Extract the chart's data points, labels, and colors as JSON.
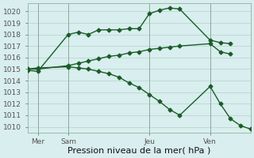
{
  "background_color": "#d9eeee",
  "grid_color": "#b8d8d0",
  "line_color": "#1a5c28",
  "marker_color": "#1a5c28",
  "xlabel": "Pression niveau de la mer( hPa )",
  "ylim": [
    1009.5,
    1020.7
  ],
  "yticks": [
    1010,
    1011,
    1012,
    1013,
    1014,
    1015,
    1016,
    1017,
    1018,
    1019,
    1020
  ],
  "xtick_labels": [
    "Mer",
    "Sam",
    "Jeu",
    "Ven"
  ],
  "num_points": 23,
  "line1_x": [
    0,
    1,
    4,
    5,
    6,
    7,
    8,
    9,
    10,
    11,
    12,
    13,
    14,
    15,
    18,
    19,
    20
  ],
  "line1": [
    1014.9,
    1014.8,
    1018.0,
    1018.2,
    1018.0,
    1018.4,
    1018.4,
    1018.4,
    1018.5,
    1018.5,
    1019.8,
    1020.1,
    1020.3,
    1020.2,
    1017.5,
    1017.3,
    1017.2
  ],
  "line2_x": [
    0,
    1,
    4,
    5,
    6,
    7,
    8,
    9,
    10,
    11,
    12,
    13,
    14,
    15,
    18,
    19,
    20
  ],
  "line2": [
    1015.0,
    1015.0,
    1015.3,
    1015.5,
    1015.7,
    1015.9,
    1016.1,
    1016.2,
    1016.4,
    1016.5,
    1016.7,
    1016.8,
    1016.9,
    1017.0,
    1017.2,
    1016.5,
    1016.3
  ],
  "line3_x": [
    0,
    1,
    4,
    5,
    6,
    7,
    8,
    9,
    10,
    11,
    12,
    13,
    14,
    15,
    18,
    19,
    20,
    21,
    22
  ],
  "line3": [
    1015.0,
    1015.1,
    1015.2,
    1015.1,
    1015.0,
    1014.8,
    1014.6,
    1014.3,
    1013.8,
    1013.4,
    1012.8,
    1012.2,
    1011.5,
    1011.0,
    1013.5,
    1012.0,
    1010.7,
    1010.1,
    1009.8
  ],
  "vline_positions": [
    1,
    4,
    12,
    18
  ],
  "xlabel_fontsize": 8,
  "tick_fontsize": 6.5
}
